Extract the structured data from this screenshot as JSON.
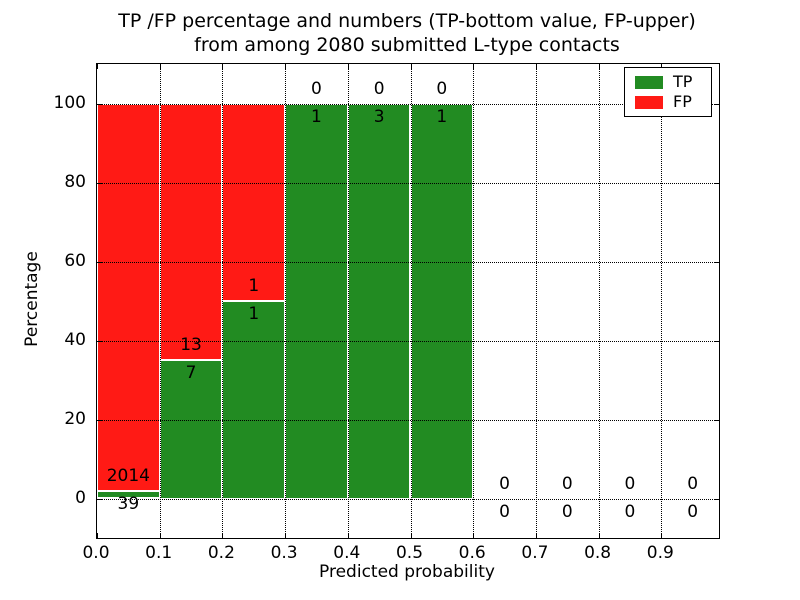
{
  "title": {
    "line1": "TP /FP percentage and numbers (TP-bottom value, FP-upper)",
    "line2": "from among 2080 submitted L-type contacts"
  },
  "axes": {
    "xlabel": "Predicted probability",
    "ylabel": "Percentage"
  },
  "legend": {
    "items": [
      {
        "label": "TP",
        "color": "#228b22"
      },
      {
        "label": "FP",
        "color": "#ff1a15"
      }
    ]
  },
  "chart_data": {
    "type": "bar",
    "stacked": true,
    "title": "TP /FP percentage and numbers (TP-bottom value, FP-upper) from among 2080 submitted L-type contacts",
    "xlabel": "Predicted probability",
    "ylabel": "Percentage",
    "total_contacts": 2080,
    "bins": {
      "start": [
        0.0,
        0.1,
        0.2,
        0.3,
        0.4,
        0.5,
        0.6,
        0.7,
        0.8,
        0.9
      ],
      "width": 0.1
    },
    "series": [
      {
        "name": "TP",
        "color": "#228b22",
        "counts": [
          39,
          7,
          1,
          1,
          3,
          1,
          0,
          0,
          0,
          0
        ],
        "percent": [
          1.9,
          35,
          50,
          100,
          100,
          100,
          0,
          0,
          0,
          0
        ]
      },
      {
        "name": "FP",
        "color": "#ff1a15",
        "counts": [
          2014,
          13,
          1,
          0,
          0,
          0,
          0,
          0,
          0,
          0
        ],
        "percent": [
          98.1,
          65,
          50,
          0,
          0,
          0,
          0,
          0,
          0,
          0
        ]
      }
    ],
    "annotation_rule": "TP count below boundary, FP count above boundary",
    "xticks": {
      "values": [
        0.0,
        0.1,
        0.2,
        0.3,
        0.4,
        0.5,
        0.6,
        0.7,
        0.8,
        0.9
      ],
      "labels": [
        "0.0",
        "0.1",
        "0.2",
        "0.3",
        "0.4",
        "0.5",
        "0.6",
        "0.7",
        "0.8",
        "0.9"
      ]
    },
    "yticks": {
      "values": [
        0,
        20,
        40,
        60,
        80,
        100
      ],
      "labels": [
        "0",
        "20",
        "40",
        "60",
        "80",
        "100"
      ]
    },
    "xlim": [
      0,
      0.992
    ],
    "ylim": [
      -10,
      110
    ],
    "grid": true,
    "legend_position": "upper right"
  }
}
